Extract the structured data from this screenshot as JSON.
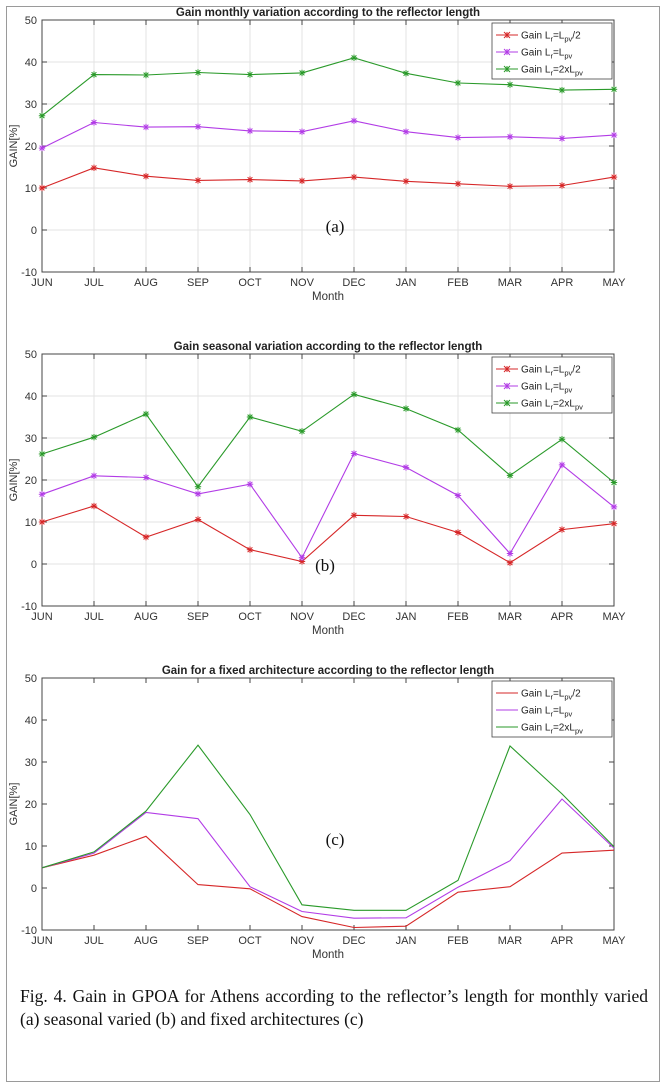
{
  "chart_data": [
    {
      "type": "line",
      "title": "Gain monthly variation according to the reflector length",
      "xlabel": "Month",
      "ylabel": "GAIN[%]",
      "panel_label": "(a)",
      "ylim": [
        -10,
        50
      ],
      "yticks": [
        -10,
        0,
        10,
        20,
        30,
        40,
        50
      ],
      "categories": [
        "JUN",
        "JUL",
        "AUG",
        "SEP",
        "OCT",
        "NOV",
        "DEC",
        "JAN",
        "FEB",
        "MAR",
        "APR",
        "MAY"
      ],
      "grid": true,
      "legend_position": "top-right",
      "series": [
        {
          "name": "Gain Lr=Lpv/2",
          "legend": {
            "a": "Gain L",
            "b": "r",
            "c": "=L",
            "d": "pv",
            "e": "/2"
          },
          "color": "#d62728",
          "marker": "asterisk",
          "values": [
            10,
            14.8,
            12.8,
            11.8,
            12.0,
            11.7,
            12.6,
            11.6,
            11.0,
            10.4,
            10.6,
            12.6
          ]
        },
        {
          "name": "Gain Lr=Lpv",
          "legend": {
            "a": "Gain L",
            "b": "r",
            "c": "=L",
            "d": "pv",
            "e": ""
          },
          "color": "#b23ce6",
          "marker": "asterisk",
          "values": [
            19.5,
            25.6,
            24.5,
            24.6,
            23.6,
            23.4,
            26.0,
            23.4,
            22.0,
            22.2,
            21.8,
            22.6
          ]
        },
        {
          "name": "Gain Lr=2xLpv",
          "legend": {
            "a": "Gain L",
            "b": "r",
            "c": "=2xL",
            "d": "pv",
            "e": ""
          },
          "color": "#2a9a2a",
          "marker": "asterisk",
          "values": [
            27.2,
            37.0,
            36.9,
            37.5,
            37.0,
            37.4,
            41.0,
            37.3,
            35.0,
            34.6,
            33.3,
            33.5
          ]
        }
      ]
    },
    {
      "type": "line",
      "title": "Gain seasonal variation according to the reflector length",
      "xlabel": "Month",
      "ylabel": "GAIN[%]",
      "panel_label": "(b)",
      "ylim": [
        -10,
        50
      ],
      "yticks": [
        -10,
        0,
        10,
        20,
        30,
        40,
        50
      ],
      "categories": [
        "JUN",
        "JUL",
        "AUG",
        "SEP",
        "OCT",
        "NOV",
        "DEC",
        "JAN",
        "FEB",
        "MAR",
        "APR",
        "MAY"
      ],
      "grid": true,
      "legend_position": "top-right",
      "series": [
        {
          "name": "Gain Lr=Lpv/2",
          "legend": {
            "a": "Gain L",
            "b": "r",
            "c": "=L",
            "d": "pv",
            "e": "/2"
          },
          "color": "#d62728",
          "marker": "asterisk",
          "values": [
            10.0,
            13.8,
            6.4,
            10.6,
            3.4,
            0.6,
            11.6,
            11.3,
            7.5,
            0.3,
            8.2,
            9.6
          ]
        },
        {
          "name": "Gain Lr=Lpv",
          "legend": {
            "a": "Gain L",
            "b": "r",
            "c": "=L",
            "d": "pv",
            "e": ""
          },
          "color": "#b23ce6",
          "marker": "asterisk",
          "values": [
            16.6,
            21.0,
            20.6,
            16.7,
            19.0,
            1.5,
            26.3,
            23.0,
            16.3,
            2.5,
            23.6,
            13.6
          ]
        },
        {
          "name": "Gain Lr=2xLpv",
          "legend": {
            "a": "Gain L",
            "b": "r",
            "c": "=2xL",
            "d": "pv",
            "e": ""
          },
          "color": "#2a9a2a",
          "marker": "asterisk",
          "values": [
            26.2,
            30.2,
            35.7,
            18.4,
            35.0,
            31.6,
            40.4,
            37.0,
            31.9,
            21.1,
            29.7,
            19.4
          ]
        }
      ]
    },
    {
      "type": "line",
      "title": "Gain for a fixed architecture according to the reflector length",
      "xlabel": "Month",
      "ylabel": "GAIN[%]",
      "panel_label": "(c)",
      "ylim": [
        -10,
        50
      ],
      "yticks": [
        -10,
        0,
        10,
        20,
        30,
        40,
        50
      ],
      "categories": [
        "JUN",
        "JUL",
        "AUG",
        "SEP",
        "OCT",
        "NOV",
        "DEC",
        "JAN",
        "FEB",
        "MAR",
        "APR",
        "MAY"
      ],
      "grid": false,
      "legend_position": "top-right",
      "series": [
        {
          "name": "Gain Lr=Lpv/2",
          "legend": {
            "a": "Gain L",
            "b": "r",
            "c": "=L",
            "d": "pv",
            "e": "/2"
          },
          "color": "#d62728",
          "marker": "none",
          "values": [
            4.8,
            7.8,
            12.3,
            0.8,
            -0.2,
            -6.8,
            -9.4,
            -9.1,
            -1.0,
            0.3,
            8.3,
            9.0
          ]
        },
        {
          "name": "Gain Lr=Lpv",
          "legend": {
            "a": "Gain L",
            "b": "r",
            "c": "=L",
            "d": "pv",
            "e": ""
          },
          "color": "#b23ce6",
          "marker": "none",
          "values": [
            4.8,
            8.3,
            18.0,
            16.5,
            0.3,
            -5.6,
            -7.2,
            -7.1,
            0.2,
            6.5,
            21.2,
            9.5
          ]
        },
        {
          "name": "Gain Lr=2xLpv",
          "legend": {
            "a": "Gain L",
            "b": "r",
            "c": "=2xL",
            "d": "pv",
            "e": ""
          },
          "color": "#2a9a2a",
          "marker": "none",
          "values": [
            4.8,
            8.6,
            18.3,
            34.0,
            17.5,
            -4.0,
            -5.3,
            -5.3,
            1.8,
            33.8,
            22.4,
            9.8
          ]
        }
      ]
    }
  ],
  "caption": "Fig. 4.  Gain in GPOA for Athens according to the reflector’s length for monthly varied (a) seasonal varied (b) and fixed architectures (c)"
}
